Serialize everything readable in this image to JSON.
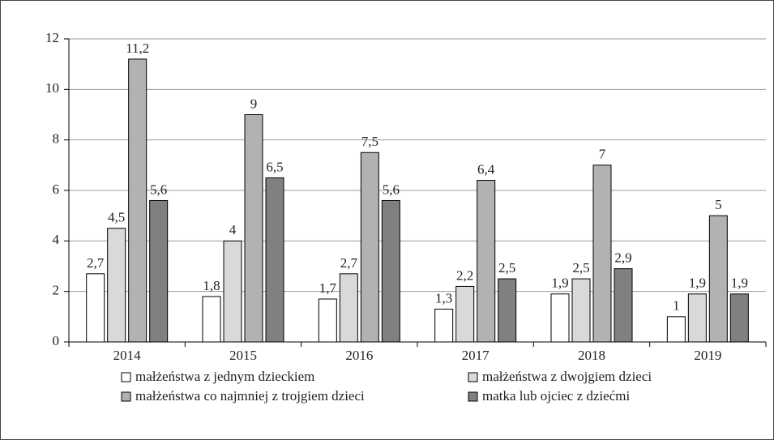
{
  "chart_data": {
    "type": "bar",
    "categories": [
      "2014",
      "2015",
      "2016",
      "2017",
      "2018",
      "2019"
    ],
    "series": [
      {
        "name": "małżeństwa z jednym dzieckiem",
        "color": "#ffffff",
        "values": [
          2.7,
          1.8,
          1.7,
          1.3,
          1.9,
          1
        ],
        "value_labels": [
          "2,7",
          "1,8",
          "1,7",
          "1,3",
          "1,9",
          "1"
        ]
      },
      {
        "name": "małżeństwa z dwojgiem dzieci",
        "color": "#d9d9d9",
        "values": [
          4.5,
          4,
          2.7,
          2.2,
          2.5,
          1.9
        ],
        "value_labels": [
          "4,5",
          "4",
          "2,7",
          "2,2",
          "2,5",
          "1,9"
        ]
      },
      {
        "name": "małżeństwa co najmniej z trojgiem dzieci",
        "color": "#b2b2b2",
        "values": [
          11.2,
          9,
          7.5,
          6.4,
          7,
          5
        ],
        "value_labels": [
          "11,2",
          "9",
          "7,5",
          "6,4",
          "7",
          "5"
        ]
      },
      {
        "name": "matka lub ojciec z dziećmi",
        "color": "#808080",
        "values": [
          5.6,
          6.5,
          5.6,
          2.5,
          2.9,
          1.9
        ],
        "value_labels": [
          "5,6",
          "6,5",
          "5,6",
          "2,5",
          "2,9",
          "1,9"
        ]
      }
    ],
    "ylim": [
      0,
      12
    ],
    "yticks": [
      0,
      2,
      4,
      6,
      8,
      10,
      12
    ],
    "grid": true,
    "legend": "bottom"
  }
}
